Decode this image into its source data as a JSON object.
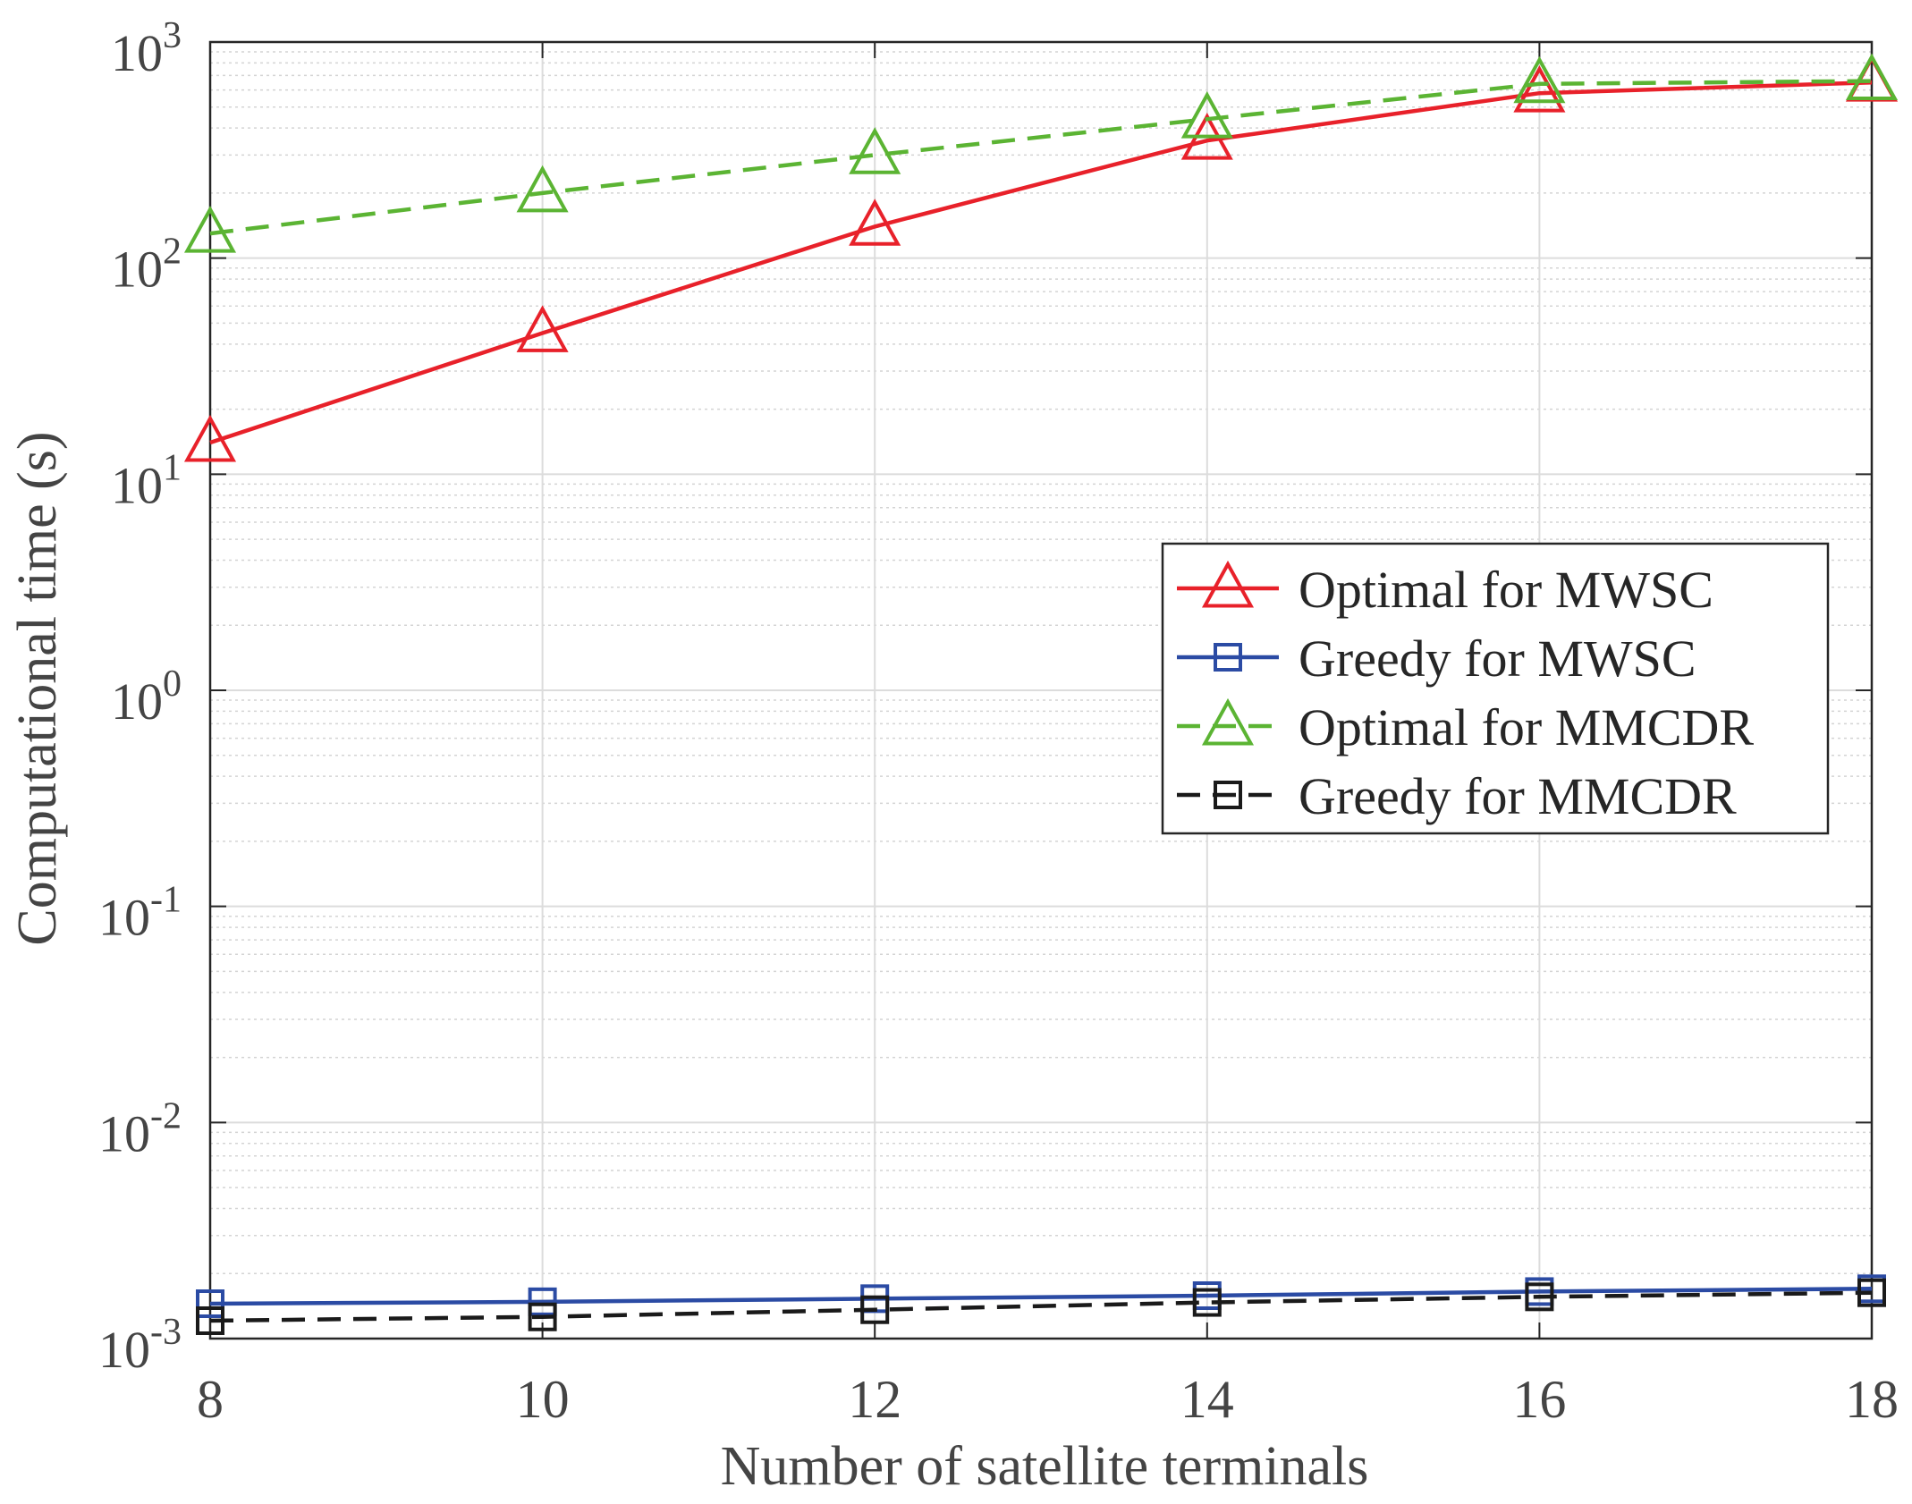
{
  "chart_data": {
    "type": "line",
    "xlabel": "Number of satellite terminals",
    "ylabel": "Computational time (s)",
    "y_scale": "log",
    "xlim": [
      8,
      18
    ],
    "ylim": [
      0.001,
      1000
    ],
    "x_ticks": [
      "8",
      "10",
      "12",
      "14",
      "16",
      "18"
    ],
    "y_ticks": [
      {
        "base": "10",
        "exp": "-3"
      },
      {
        "base": "10",
        "exp": "-2"
      },
      {
        "base": "10",
        "exp": "-1"
      },
      {
        "base": "10",
        "exp": "0"
      },
      {
        "base": "10",
        "exp": "1"
      },
      {
        "base": "10",
        "exp": "2"
      },
      {
        "base": "10",
        "exp": "3"
      }
    ],
    "grid": true,
    "minor_grid": true,
    "legend_position": "right-middle",
    "x": [
      8,
      10,
      12,
      14,
      16,
      18
    ],
    "series": [
      {
        "name": "Optimal for MWSC",
        "values": [
          14,
          45,
          140,
          350,
          580,
          650
        ],
        "color": "#e8212a",
        "line_style": "solid",
        "marker": "triangle"
      },
      {
        "name": "Greedy for MWSC",
        "values": [
          0.00145,
          0.00148,
          0.00153,
          0.00158,
          0.00165,
          0.0017
        ],
        "color": "#2b4ba4",
        "line_style": "solid",
        "marker": "square"
      },
      {
        "name": "Optimal for MMCDR",
        "values": [
          130,
          200,
          300,
          440,
          640,
          660
        ],
        "color": "#5bb433",
        "line_style": "dashed",
        "marker": "triangle"
      },
      {
        "name": "Greedy for MMCDR",
        "values": [
          0.00121,
          0.00126,
          0.00136,
          0.00147,
          0.00156,
          0.00163
        ],
        "color": "#1a1a1a",
        "line_style": "dashed",
        "marker": "square"
      }
    ]
  }
}
